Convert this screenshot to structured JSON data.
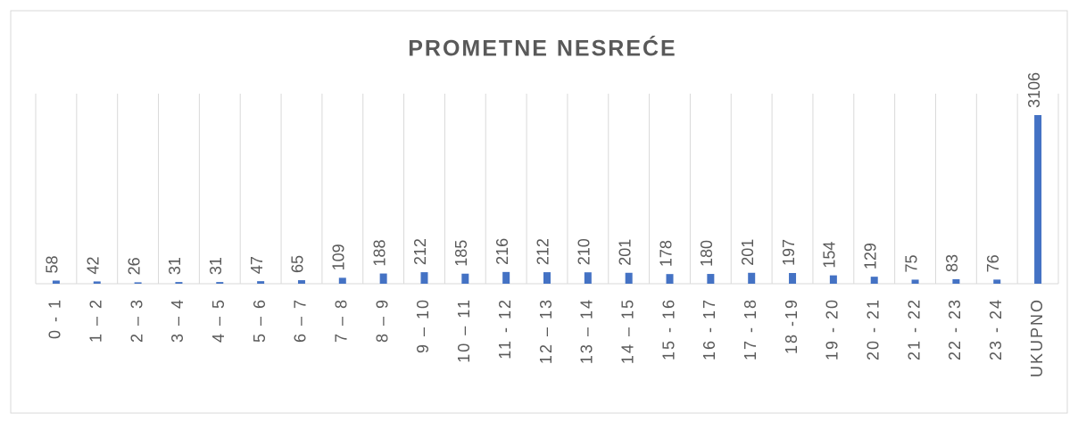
{
  "chart_data": {
    "type": "bar",
    "title": "PROMETNE NESREĆE",
    "categories": [
      "0 - 1",
      "1 – 2",
      "2 – 3",
      "3 – 4",
      "4 – 5",
      "5 – 6",
      "6 – 7",
      "7 – 8",
      "8 – 9",
      "9 – 10",
      "10 – 11",
      "11 - 12",
      "12 – 13",
      "13 – 14",
      "14 – 15",
      "15 - 16",
      "16 - 17",
      "17 - 18",
      "18 -19",
      "19 - 20",
      "20 - 21",
      "21 - 22",
      "22 - 23",
      "23 - 24",
      "UKUPNO"
    ],
    "values": [
      58,
      42,
      26,
      31,
      31,
      47,
      65,
      109,
      188,
      212,
      185,
      216,
      212,
      210,
      201,
      178,
      180,
      201,
      197,
      154,
      129,
      75,
      83,
      76,
      3106
    ],
    "color": "#4472c4",
    "ylim": [
      0,
      3500
    ],
    "grid": true
  }
}
